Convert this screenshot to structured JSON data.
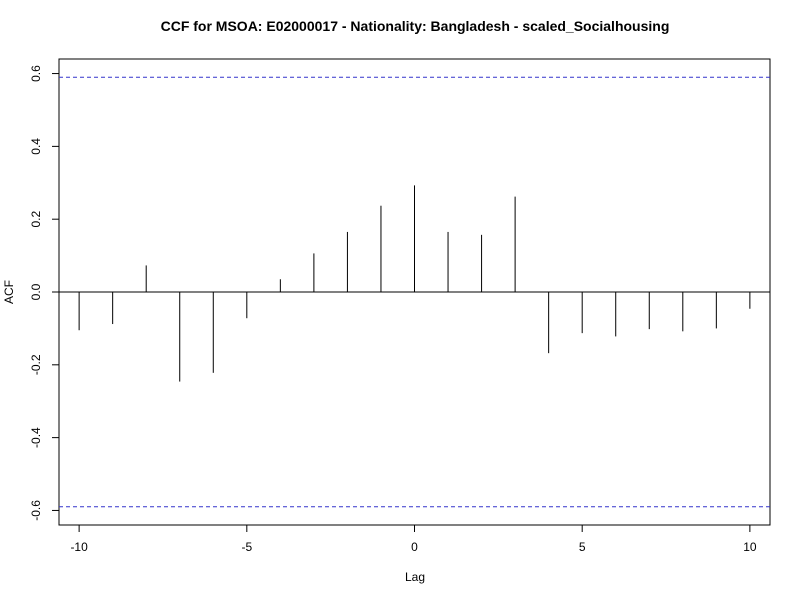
{
  "chart_data": {
    "type": "bar",
    "title": "CCF for MSOA: E02000017 - Nationality: Bangladesh - scaled_Socialhousing",
    "xlabel": "Lag",
    "ylabel": "ACF",
    "xlim": [
      -10.6,
      10.6
    ],
    "ylim": [
      -0.64,
      0.64
    ],
    "x_ticks": [
      -10,
      -5,
      0,
      5,
      10
    ],
    "y_ticks": [
      -0.6,
      -0.4,
      -0.2,
      0.0,
      0.2,
      0.4,
      0.6
    ],
    "lags": [
      -10,
      -9,
      -8,
      -7,
      -6,
      -5,
      -4,
      -3,
      -2,
      -1,
      0,
      1,
      2,
      3,
      4,
      5,
      6,
      7,
      8,
      9,
      10
    ],
    "values": [
      -0.105,
      -0.088,
      0.073,
      -0.246,
      -0.222,
      -0.072,
      0.035,
      0.106,
      0.165,
      0.237,
      0.293,
      0.165,
      0.157,
      0.262,
      -0.168,
      -0.113,
      -0.122,
      -0.102,
      -0.108,
      -0.1,
      -0.046
    ],
    "confidence_bound": 0.59,
    "confidence_color": "#3333cc",
    "grid": false
  }
}
